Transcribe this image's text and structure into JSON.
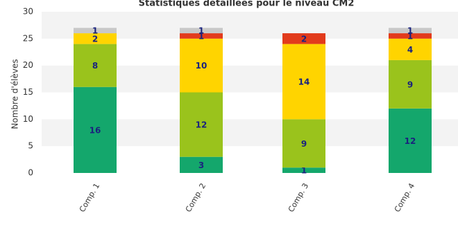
{
  "chart_data": {
    "type": "bar",
    "stacked": true,
    "title": "Statistiques détaillées pour le niveau CM2",
    "ylabel": "Nombre d'élèves",
    "xlabel": "",
    "ylim": [
      0,
      30
    ],
    "yticks": [
      "0",
      "5",
      "10",
      "15",
      "20",
      "25",
      "30"
    ],
    "categories": [
      "Comp. 1",
      "Comp. 2",
      "Comp. 3",
      "Comp. 4"
    ],
    "series": [
      {
        "color": "#14a76c",
        "values": [
          16,
          3,
          1,
          12
        ]
      },
      {
        "color": "#9ac31c",
        "values": [
          8,
          12,
          9,
          9
        ]
      },
      {
        "color": "#ffd400",
        "values": [
          2,
          10,
          14,
          4
        ]
      },
      {
        "color": "#e23b1c",
        "values": [
          0,
          1,
          2,
          1
        ]
      },
      {
        "color": "#c8c8c8",
        "values": [
          1,
          1,
          0,
          1
        ]
      }
    ],
    "label_color": "#1a237e",
    "grid": "alternating bands",
    "legend": "none"
  }
}
